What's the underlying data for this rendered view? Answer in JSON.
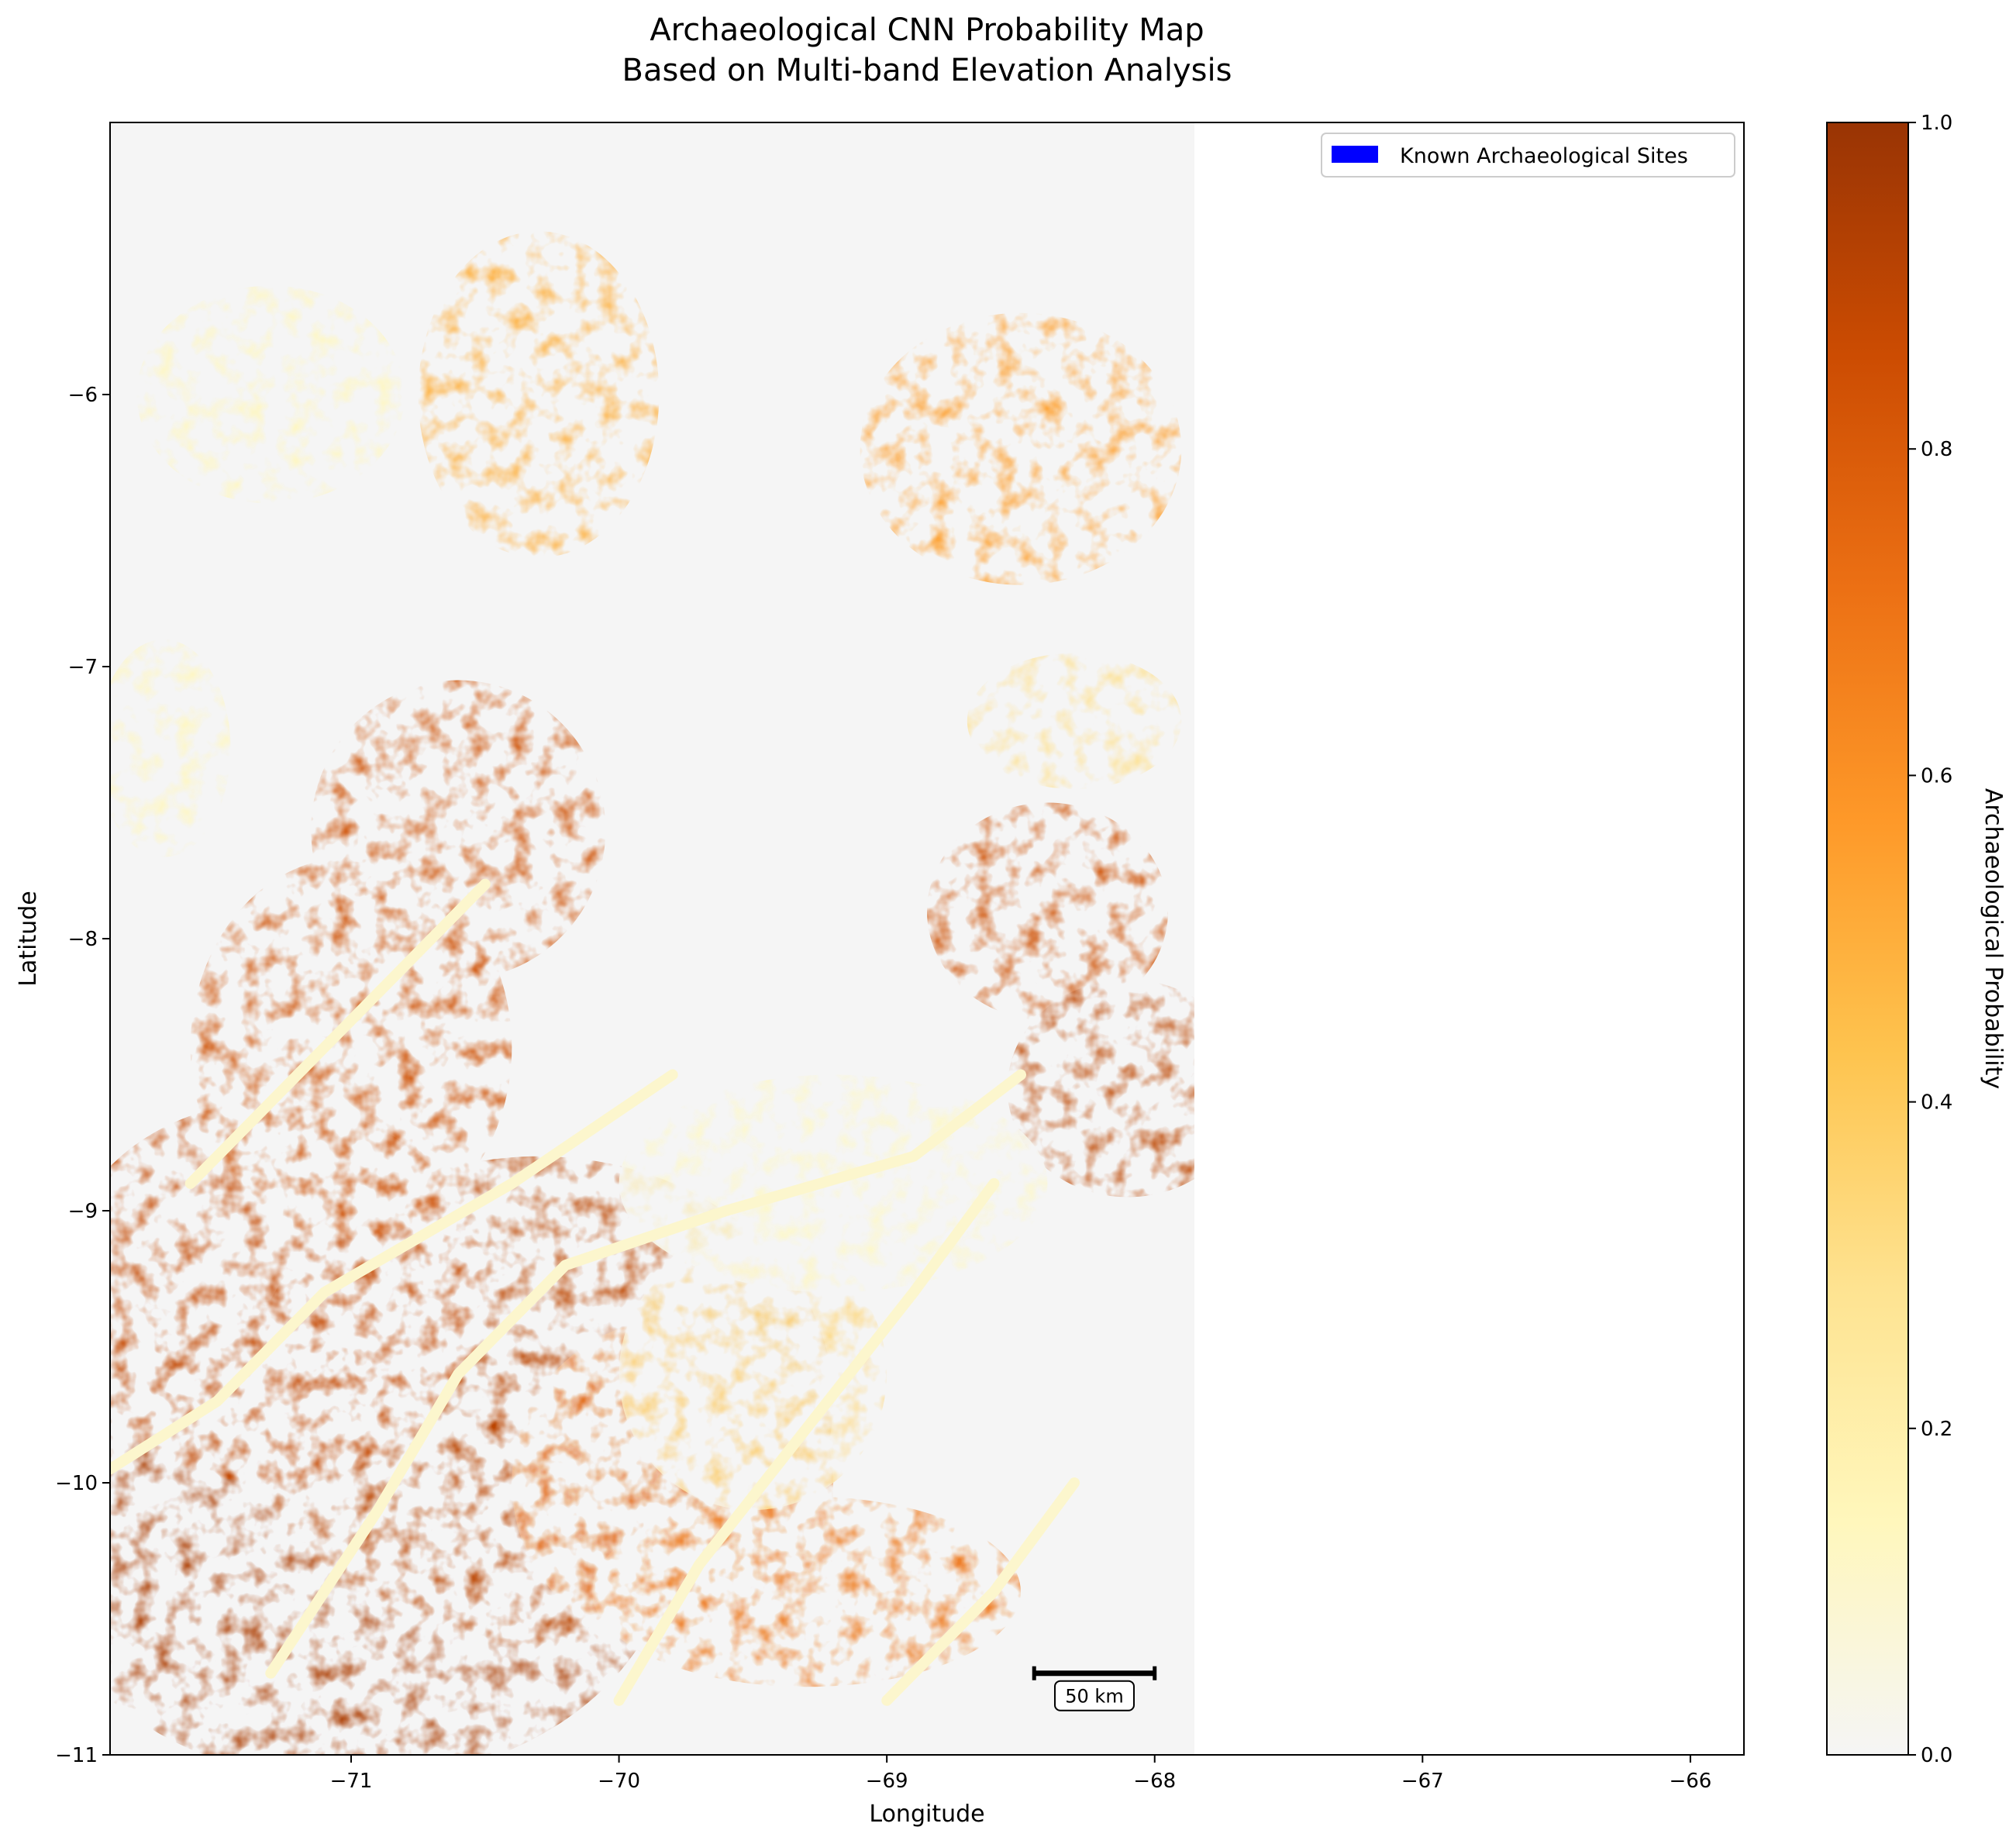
{
  "figure": {
    "title_line1": "Archaeological CNN Probability Map",
    "title_line2": "Based on Multi-band Elevation Analysis"
  },
  "chart_data": {
    "type": "heatmap",
    "title": "Archaeological CNN Probability Map\nBased on Multi-band Elevation Analysis",
    "xlabel": "Longitude",
    "ylabel": "Latitude",
    "xlim": [
      -71.9,
      -65.8
    ],
    "ylim": [
      -11.0,
      -5.0
    ],
    "data_extent": {
      "lon": [
        -71.9,
        -67.85
      ],
      "lat": [
        -11.0,
        -5.0
      ]
    },
    "xticks": [
      -71,
      -70,
      -69,
      -68,
      -67,
      -66
    ],
    "yticks": [
      -6,
      -7,
      -8,
      -9,
      -10,
      -11
    ],
    "xtick_labels": [
      "−71",
      "−70",
      "−69",
      "−68",
      "−67",
      "−66"
    ],
    "ytick_labels": [
      "−6",
      "−7",
      "−8",
      "−9",
      "−10",
      "−11"
    ],
    "legend": {
      "entries": [
        {
          "label": "Known Archaeological Sites",
          "color": "#0000ff"
        }
      ],
      "position": "top-right"
    },
    "colorbar": {
      "label": "Archaeological Probability",
      "range": [
        0,
        1
      ],
      "ticks": [
        0.0,
        0.2,
        0.4,
        0.6,
        0.8,
        1.0
      ],
      "tick_labels": [
        "0.0",
        "0.2",
        "0.4",
        "0.6",
        "0.8",
        "1.0"
      ],
      "colormap": [
        "#f5f5f5",
        "#fff7bc",
        "#fee391",
        "#fec44f",
        "#fe9929",
        "#ec7014",
        "#cc4c02",
        "#993404"
      ]
    },
    "scale_bar": {
      "label": "50 km",
      "lon_start": -68.45,
      "lon_end": -68.0,
      "lat": -10.7
    },
    "regions": [
      {
        "lon": -71.0,
        "lat": -10.2,
        "rx": 1.2,
        "ry": 0.9,
        "value": 0.95
      },
      {
        "lon": -70.3,
        "lat": -9.7,
        "rx": 1.1,
        "ry": 0.9,
        "value": 0.9
      },
      {
        "lon": -71.3,
        "lat": -9.3,
        "rx": 0.8,
        "ry": 0.7,
        "value": 0.88
      },
      {
        "lon": -71.0,
        "lat": -8.4,
        "rx": 0.6,
        "ry": 0.7,
        "value": 0.85
      },
      {
        "lon": -70.6,
        "lat": -7.6,
        "rx": 0.55,
        "ry": 0.55,
        "value": 0.85
      },
      {
        "lon": -69.8,
        "lat": -10.0,
        "rx": 0.6,
        "ry": 0.6,
        "value": 0.75
      },
      {
        "lon": -69.3,
        "lat": -10.4,
        "rx": 0.8,
        "ry": 0.35,
        "value": 0.7
      },
      {
        "lon": -69.5,
        "lat": -9.6,
        "rx": 0.5,
        "ry": 0.5,
        "value": 0.35
      },
      {
        "lon": -68.4,
        "lat": -7.9,
        "rx": 0.45,
        "ry": 0.4,
        "value": 0.85
      },
      {
        "lon": -68.1,
        "lat": -8.55,
        "rx": 0.45,
        "ry": 0.4,
        "value": 0.9
      },
      {
        "lon": -68.5,
        "lat": -6.2,
        "rx": 0.6,
        "ry": 0.5,
        "value": 0.55
      },
      {
        "lon": -70.3,
        "lat": -6.0,
        "rx": 0.45,
        "ry": 0.6,
        "value": 0.5
      },
      {
        "lon": -71.3,
        "lat": -6.0,
        "rx": 0.5,
        "ry": 0.4,
        "value": 0.15
      },
      {
        "lon": -69.2,
        "lat": -8.9,
        "rx": 0.8,
        "ry": 0.4,
        "value": 0.12
      },
      {
        "lon": -68.3,
        "lat": -7.2,
        "rx": 0.4,
        "ry": 0.25,
        "value": 0.3
      },
      {
        "lon": -71.7,
        "lat": -7.3,
        "rx": 0.25,
        "ry": 0.4,
        "value": 0.15
      }
    ],
    "channels": [
      {
        "value": 0.1,
        "points": [
          [
            -71.9,
            -9.95
          ],
          [
            -71.5,
            -9.7
          ],
          [
            -71.1,
            -9.3
          ],
          [
            -70.4,
            -8.9
          ],
          [
            -69.8,
            -8.5
          ]
        ]
      },
      {
        "value": 0.1,
        "points": [
          [
            -71.3,
            -10.7
          ],
          [
            -70.9,
            -10.1
          ],
          [
            -70.6,
            -9.6
          ],
          [
            -70.2,
            -9.2
          ],
          [
            -69.6,
            -9.0
          ],
          [
            -68.9,
            -8.8
          ],
          [
            -68.5,
            -8.5
          ]
        ]
      },
      {
        "value": 0.1,
        "points": [
          [
            -71.6,
            -8.9
          ],
          [
            -71.2,
            -8.5
          ],
          [
            -70.9,
            -8.2
          ],
          [
            -70.5,
            -7.8
          ]
        ]
      },
      {
        "value": 0.1,
        "points": [
          [
            -70.0,
            -10.8
          ],
          [
            -69.7,
            -10.3
          ],
          [
            -69.3,
            -9.8
          ],
          [
            -68.9,
            -9.3
          ],
          [
            -68.6,
            -8.9
          ]
        ]
      },
      {
        "value": 0.1,
        "points": [
          [
            -69.0,
            -10.8
          ],
          [
            -68.6,
            -10.4
          ],
          [
            -68.3,
            -10.0
          ]
        ]
      }
    ]
  }
}
